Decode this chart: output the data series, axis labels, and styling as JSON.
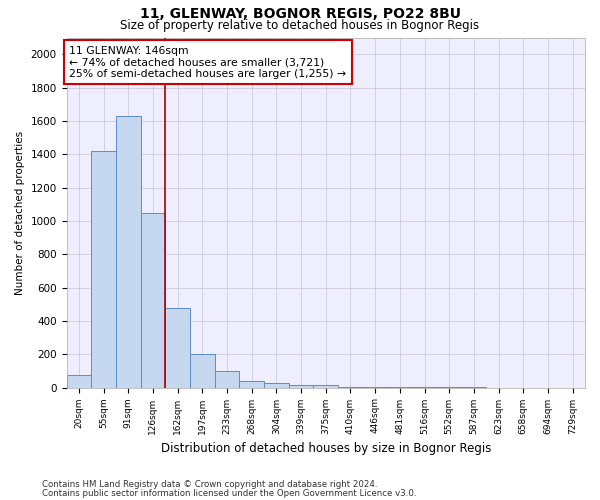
{
  "title1": "11, GLENWAY, BOGNOR REGIS, PO22 8BU",
  "title2": "Size of property relative to detached houses in Bognor Regis",
  "xlabel": "Distribution of detached houses by size in Bognor Regis",
  "ylabel": "Number of detached properties",
  "footnote1": "Contains HM Land Registry data © Crown copyright and database right 2024.",
  "footnote2": "Contains public sector information licensed under the Open Government Licence v3.0.",
  "categories": [
    "20sqm",
    "55sqm",
    "91sqm",
    "126sqm",
    "162sqm",
    "197sqm",
    "233sqm",
    "268sqm",
    "304sqm",
    "339sqm",
    "375sqm",
    "410sqm",
    "446sqm",
    "481sqm",
    "516sqm",
    "552sqm",
    "587sqm",
    "623sqm",
    "658sqm",
    "694sqm",
    "729sqm"
  ],
  "values": [
    75,
    1420,
    1630,
    1050,
    480,
    200,
    100,
    40,
    25,
    18,
    14,
    5,
    3,
    2,
    1,
    1,
    1,
    0,
    0,
    0,
    0
  ],
  "bar_color": "#c5d8f0",
  "bar_edge_color": "#5b8dc8",
  "vline_x": 3.5,
  "vline_color": "#aa0000",
  "annotation_line1": "11 GLENWAY: 146sqm",
  "annotation_line2": "← 74% of detached houses are smaller (3,721)",
  "annotation_line3": "25% of semi-detached houses are larger (1,255) →",
  "annotation_box_color": "white",
  "annotation_box_edge": "#cc0000",
  "ylim": [
    0,
    2100
  ],
  "yticks": [
    0,
    200,
    400,
    600,
    800,
    1000,
    1200,
    1400,
    1600,
    1800,
    2000
  ],
  "background_color": "#eeeeff",
  "grid_color": "#ccccdd",
  "title1_fontsize": 10,
  "title2_fontsize": 8.5
}
